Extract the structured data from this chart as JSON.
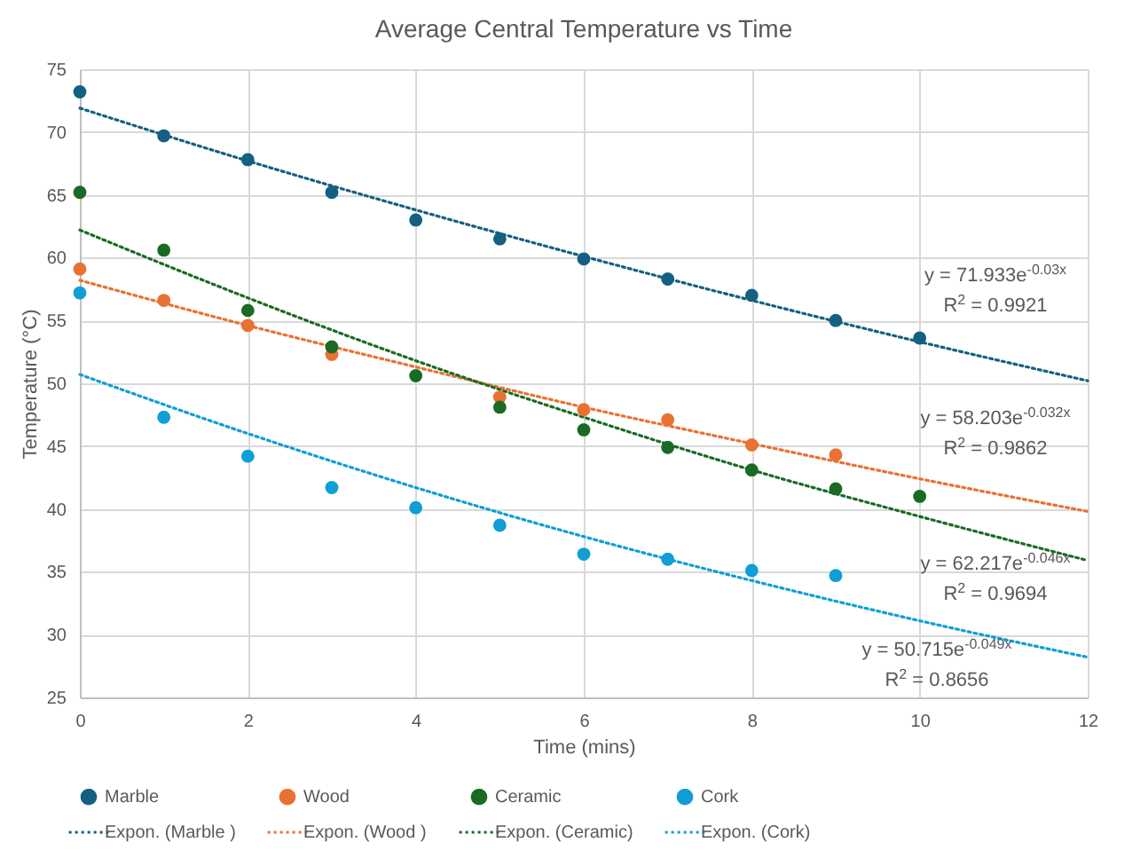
{
  "chart_data": {
    "type": "scatter",
    "title": "Average Central Temperature vs Time",
    "xlabel": "Time (mins)",
    "ylabel": "Temperature (°C)",
    "xlim": [
      0,
      12
    ],
    "xticks": [
      0,
      2,
      4,
      6,
      8,
      10,
      12
    ],
    "ylim": [
      25,
      75
    ],
    "yticks": [
      25,
      30,
      35,
      40,
      45,
      50,
      55,
      60,
      65,
      70,
      75
    ],
    "grid": true,
    "legend": "bottom",
    "marker": "circle",
    "series": [
      {
        "name": "Marble",
        "color": "#156082",
        "x": [
          0,
          1,
          2,
          3,
          4,
          5,
          6,
          7,
          8,
          9,
          10
        ],
        "values": [
          73.2,
          69.7,
          67.8,
          65.2,
          63.0,
          61.5,
          59.9,
          58.3,
          57.0,
          55.0,
          53.6
        ]
      },
      {
        "name": "Wood",
        "color": "#e97132",
        "x": [
          0,
          1,
          2,
          3,
          4,
          5,
          6,
          7,
          8,
          9
        ],
        "values": [
          59.1,
          56.6,
          54.6,
          52.3,
          null,
          48.9,
          47.9,
          47.1,
          45.1,
          44.3
        ]
      },
      {
        "name": "Ceramic",
        "color": "#196b24",
        "x": [
          0,
          1,
          2,
          3,
          4,
          5,
          6,
          7,
          8,
          9,
          10
        ],
        "values": [
          65.2,
          60.6,
          55.8,
          52.9,
          50.6,
          48.1,
          46.3,
          44.9,
          43.1,
          41.6,
          41.0
        ]
      },
      {
        "name": "Cork",
        "color": "#0f9ed5",
        "x": [
          0,
          1,
          2,
          3,
          4,
          5,
          6,
          7,
          8,
          9
        ],
        "values": [
          57.2,
          47.3,
          44.2,
          41.7,
          40.1,
          38.7,
          36.4,
          36.0,
          35.1,
          34.7
        ]
      },
      {
        "name": "Expon. (Marble )",
        "type": "line",
        "line_style": "dotted",
        "marker": "none",
        "color": "#156082",
        "x": [
          0,
          2,
          4,
          6,
          8,
          10,
          12
        ],
        "values": [
          71.9,
          67.7,
          63.8,
          60.1,
          56.6,
          53.3,
          50.2
        ]
      },
      {
        "name": "Expon. (Wood )",
        "type": "line",
        "line_style": "dotted",
        "marker": "none",
        "color": "#e97132",
        "x": [
          0,
          2,
          4,
          6,
          8,
          10,
          12
        ],
        "values": [
          58.2,
          54.6,
          51.3,
          48.1,
          45.2,
          42.4,
          39.8
        ]
      },
      {
        "name": "Expon. (Ceramic)",
        "type": "line",
        "line_style": "dotted",
        "marker": "none",
        "color": "#196b24",
        "x": [
          0,
          2,
          4,
          6,
          8,
          10,
          12
        ],
        "values": [
          62.2,
          56.8,
          51.8,
          47.3,
          43.1,
          39.4,
          35.9
        ]
      },
      {
        "name": "Expon. (Cork)",
        "type": "line",
        "line_style": "dotted",
        "marker": "none",
        "color": "#0f9ed5",
        "x": [
          0,
          2,
          4,
          6,
          8,
          10,
          12
        ],
        "values": [
          50.7,
          46.0,
          41.7,
          37.8,
          34.3,
          31.1,
          28.2
        ]
      }
    ],
    "annotations": [
      "y = 71.933e$^{-0.03x}$",
      "R$^{2}$ = 0.9921",
      "y = 58.203e$^{-0.032x}$",
      "R$^{2}$ = 0.9862",
      "y = 62.217e$^{-0.046x}$",
      "R$^{2}$ = 0.9694",
      "y = 50.715e$^{-0.049x}$",
      "R$^{2}$ = 0.8656"
    ]
  }
}
